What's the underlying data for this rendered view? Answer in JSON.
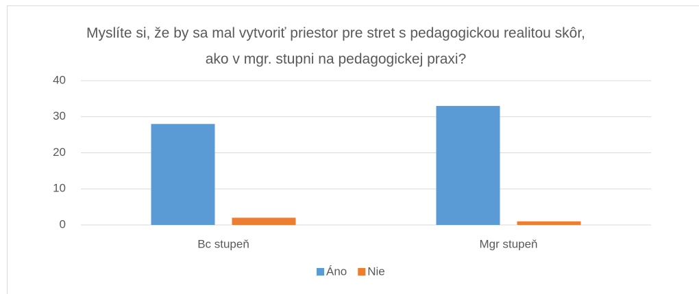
{
  "chart_data": {
    "type": "bar",
    "title": "Myslíte si, že by sa mal vytvoriť priestor pre stret s pedagogickou realitou skôr, ako v mgr. stupni na pedagogickej praxi?",
    "categories": [
      "Bc stupeň",
      "Mgr stupeň"
    ],
    "series": [
      {
        "name": "Áno",
        "color": "#5b9bd5",
        "values": [
          28,
          33
        ]
      },
      {
        "name": "Nie",
        "color": "#ed7d31",
        "values": [
          2,
          1
        ]
      }
    ],
    "ylim": [
      0,
      40
    ],
    "yticks": [
      0,
      10,
      20,
      30,
      40
    ],
    "grid": true,
    "legend": "bottom"
  }
}
